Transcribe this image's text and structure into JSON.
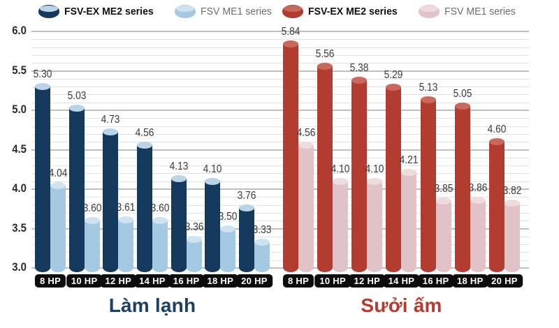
{
  "chart_data": {
    "type": "bar",
    "title": "",
    "ylim": [
      3.0,
      6.0
    ],
    "ytick_minor_step": 0.1,
    "ytick_major_step": 0.5,
    "grid": true,
    "legend_position": "top",
    "yticks": [
      "6.0",
      "5.5",
      "5.0",
      "4.5",
      "4.0",
      "3.5",
      "3.0"
    ],
    "categories": [
      "8 HP",
      "10 HP",
      "12 HP",
      "14 HP",
      "16 HP",
      "18 HP",
      "20 HP"
    ],
    "groups": [
      {
        "title": "Làm lạnh",
        "title_color": "#1b3f66",
        "series": [
          {
            "name": "FSV-EX ME2 series",
            "color": "#14395c",
            "cap_color": "#b9d4e7",
            "values": [
              5.3,
              5.03,
              4.73,
              4.56,
              4.13,
              4.1,
              3.76
            ]
          },
          {
            "name": "FSV ME1 series",
            "color": "#a5c9e3",
            "cap_color": "#cfe2f0",
            "values": [
              4.04,
              3.6,
              3.61,
              3.6,
              3.36,
              3.5,
              3.33
            ]
          }
        ]
      },
      {
        "title": "Sưởi ấm",
        "title_color": "#b23c2f",
        "series": [
          {
            "name": "FSV-EX ME2 series",
            "color": "#b23c2f",
            "cap_color": "#c9695d",
            "values": [
              5.84,
              5.56,
              5.38,
              5.29,
              5.13,
              5.05,
              4.6
            ]
          },
          {
            "name": "FSV ME1 series",
            "color": "#e1c3c7",
            "cap_color": "#eedbde",
            "values": [
              4.56,
              4.1,
              4.1,
              4.21,
              3.85,
              3.86,
              3.82
            ]
          }
        ]
      }
    ]
  }
}
